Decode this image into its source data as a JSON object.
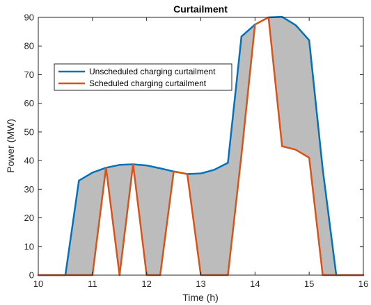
{
  "chart_data": {
    "type": "line",
    "title": "Curtailment",
    "xlabel": "Time (h)",
    "ylabel": "Power (MW)",
    "xlim": [
      10,
      16
    ],
    "ylim": [
      0,
      90
    ],
    "xticks": [
      10,
      11,
      12,
      13,
      14,
      15,
      16
    ],
    "yticks": [
      0,
      10,
      20,
      30,
      40,
      50,
      60,
      70,
      80,
      90
    ],
    "grid": false,
    "legend_position": "upper-left",
    "fill_between_series": true,
    "fill_color": "#bcbcbc",
    "series": [
      {
        "name": "Unscheduled charging curtailment",
        "color": "#0072bd",
        "x": [
          10,
          10.25,
          10.5,
          10.75,
          11,
          11.25,
          11.5,
          11.75,
          12,
          12.25,
          12.5,
          12.75,
          13,
          13.25,
          13.5,
          13.75,
          14,
          14.25,
          14.5,
          14.75,
          15,
          15.25,
          15.5,
          15.75,
          16
        ],
        "y": [
          0,
          0,
          0,
          33,
          35.8,
          37.5,
          38.5,
          38.7,
          38.3,
          37.3,
          36.2,
          35.3,
          35.5,
          36.8,
          39.2,
          83.3,
          87.5,
          90,
          90.2,
          87.3,
          82,
          37,
          0,
          0,
          0
        ]
      },
      {
        "name": "Scheduled charging curtailment",
        "color": "#d95319",
        "x": [
          10,
          10.25,
          10.5,
          10.75,
          11,
          11.25,
          11.5,
          11.75,
          12,
          12.25,
          12.5,
          12.75,
          13,
          13.25,
          13.5,
          13.75,
          14,
          14.25,
          14.5,
          14.75,
          15,
          15.25,
          15.5,
          15.75,
          16
        ],
        "y": [
          0,
          0,
          0,
          0,
          0,
          37.5,
          0,
          38.7,
          0,
          0,
          36.2,
          35.3,
          0,
          0,
          0,
          42,
          87.5,
          90,
          45,
          43.8,
          41,
          0,
          0,
          0,
          0
        ]
      }
    ]
  }
}
